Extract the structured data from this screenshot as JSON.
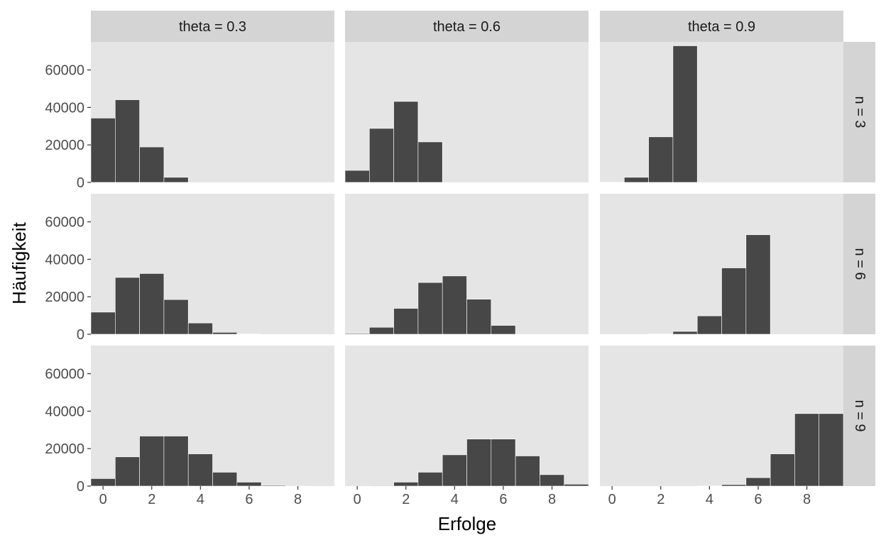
{
  "chart_data": {
    "type": "bar",
    "subtype": "faceted-histogram",
    "xlabel": "Erfolge",
    "ylabel": "Häufigkeit",
    "xlim": [
      -0.5,
      9.5
    ],
    "ylim": [
      0,
      75000
    ],
    "x_ticks": [
      0,
      2,
      4,
      6,
      8
    ],
    "y_ticks": [
      0,
      20000,
      40000,
      60000
    ],
    "col_facets": [
      "theta = 0.3",
      "theta = 0.6",
      "theta = 0.9"
    ],
    "row_facets": [
      "n = 3",
      "n = 6",
      "n = 9"
    ],
    "x": [
      0,
      1,
      2,
      3,
      4,
      5,
      6,
      7,
      8,
      9
    ],
    "panels": [
      {
        "row": 0,
        "col": 0,
        "values": [
          34300,
          44100,
          18900,
          2700
        ]
      },
      {
        "row": 0,
        "col": 1,
        "values": [
          6400,
          28800,
          43200,
          21600
        ]
      },
      {
        "row": 0,
        "col": 2,
        "values": [
          100,
          2700,
          24300,
          72900
        ]
      },
      {
        "row": 1,
        "col": 0,
        "values": [
          11800,
          30300,
          32400,
          18500,
          6000,
          1000,
          100
        ]
      },
      {
        "row": 1,
        "col": 1,
        "values": [
          400,
          3700,
          13800,
          27600,
          31100,
          18700,
          4700
        ]
      },
      {
        "row": 1,
        "col": 2,
        "values": [
          0,
          0,
          100,
          1500,
          9800,
          35400,
          53100
        ]
      },
      {
        "row": 1,
        "col": 2,
        "values": []
      },
      {
        "row": 2,
        "col": 0,
        "values": [
          4000,
          15600,
          26700,
          26700,
          17200,
          7400,
          2100,
          400,
          40,
          0
        ]
      },
      {
        "row": 2,
        "col": 1,
        "values": [
          0,
          300,
          2100,
          7400,
          16700,
          25100,
          25100,
          16100,
          6100,
          1000
        ]
      },
      {
        "row": 2,
        "col": 2,
        "values": [
          0,
          0,
          0,
          0,
          100,
          800,
          4500,
          17200,
          38700,
          38700
        ]
      }
    ],
    "bar_color": "#474747",
    "bar_outline": "#ffffff",
    "panel_bg": "#e5e5e5",
    "strip_bg": "#d4d4d4",
    "grid": false
  }
}
